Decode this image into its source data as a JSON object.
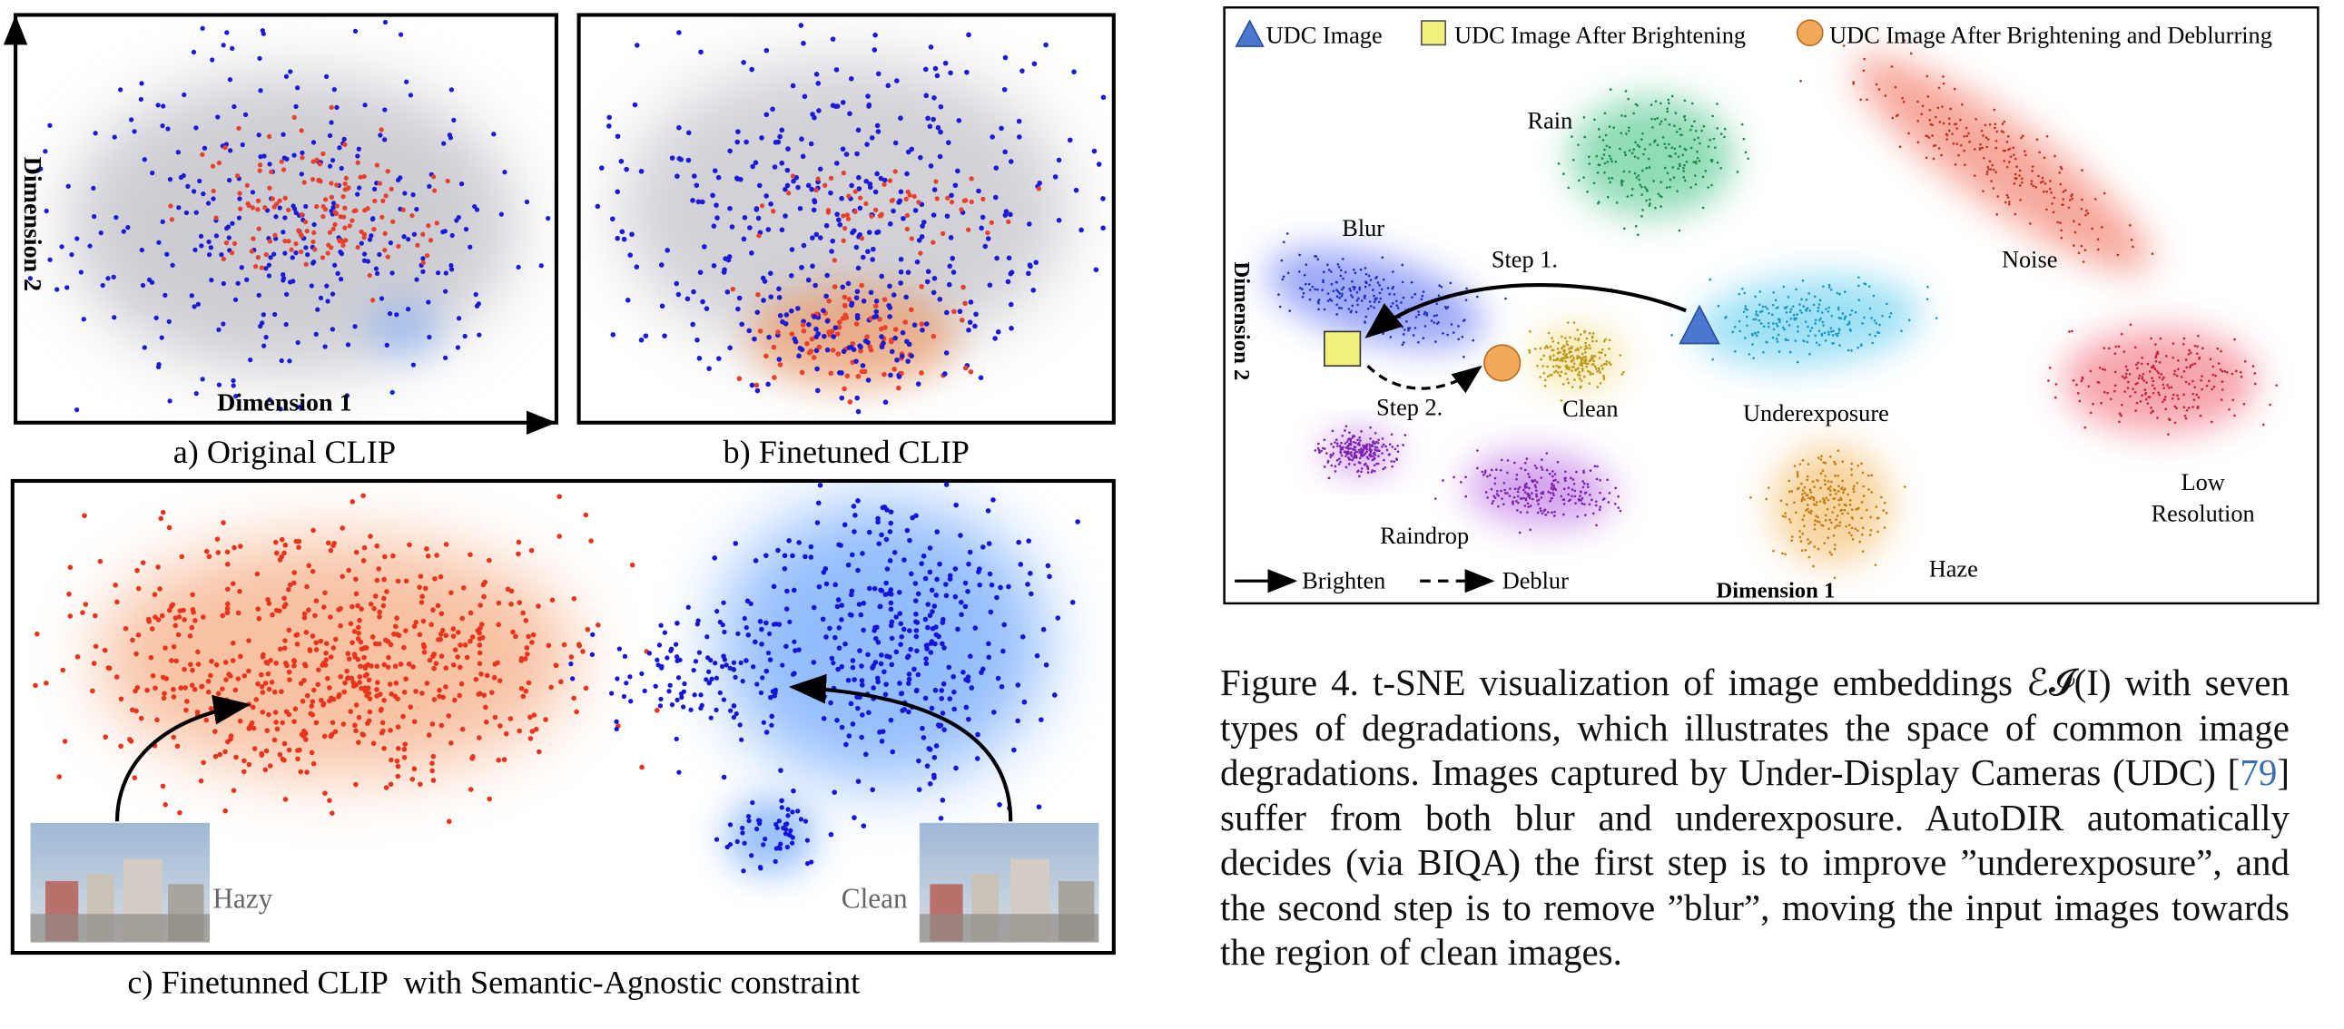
{
  "panels": {
    "a": {
      "label": "a) Original CLIP",
      "x_axis": "Dimension 1",
      "y_axis": "Dimension 2"
    },
    "b": {
      "label": "b) Finetuned CLIP"
    },
    "c": {
      "label": "c) Finetunned CLIP  with Semantic-Agnostic constraint",
      "image_labels": [
        "Hazy",
        "Clean"
      ]
    }
  },
  "tsne": {
    "legend": [
      "UDC Image",
      "UDC Image After Brightening",
      "UDC Image After Brightening and Deblurring"
    ],
    "clusters": [
      {
        "label": "Rain"
      },
      {
        "label": "Noise"
      },
      {
        "label": "Blur"
      },
      {
        "label": "Clean"
      },
      {
        "label": "Underexposure"
      },
      {
        "label_lines": [
          "Low",
          "Resolution"
        ]
      },
      {
        "label": "Raindrop"
      },
      {
        "label": "Haze"
      }
    ],
    "steps": [
      "Step 1.",
      "Step 2."
    ],
    "arrow_legend": [
      "Brighten",
      "Deblur"
    ],
    "x_axis": "Dimension 1",
    "y_axis": "Dimension 2"
  },
  "caption": {
    "figure": "Figure 4.",
    "text_1": " t-SNE visualization of image embeddings ℰ𝓘(I) with seven types of degradations, which illustrates the space of common image degradations.  Images captured by Under-Display Cameras (UDC) [",
    "citation": "79",
    "text_2": "] suffer from both blur and underexposure. AutoDIR automatically decides (via BIQA) the first step is to improve ”underexposure”, and the second step is to remove ”blur”, moving the input images towards the region of clean images."
  }
}
